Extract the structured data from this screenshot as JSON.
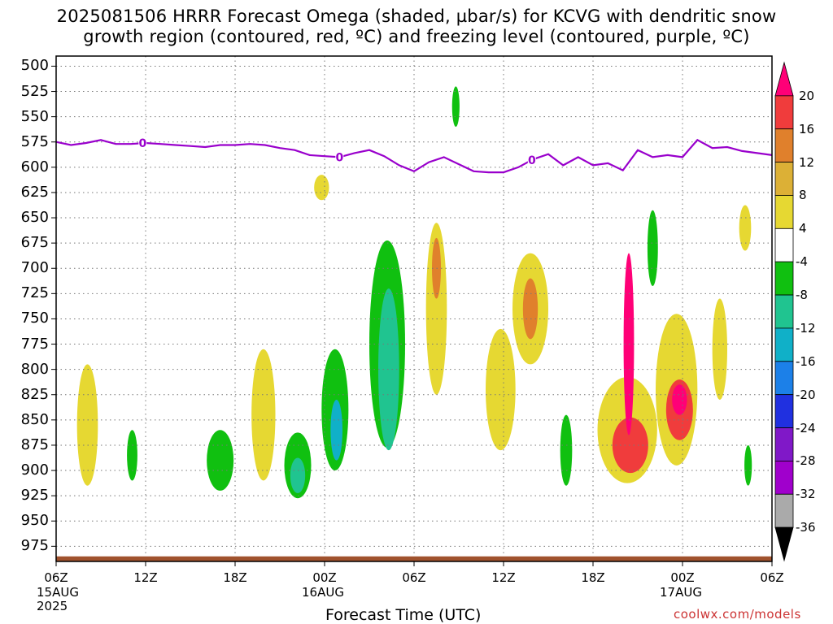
{
  "title_line1": "2025081506 HRRR Forecast Omega (shaded, µbar/s) for KCVG with dendritic snow",
  "title_line2": "growth region (contoured, red, ºC) and freezing level (contoured, purple, ºC)",
  "x_axis_title": "Forecast Time (UTC)",
  "credit": "coolwx.com/models",
  "chart_data": {
    "type": "heatmap",
    "title": "2025081506 HRRR Forecast Omega (shaded, µbar/s) for KCVG with dendritic snow growth region (contoured, red, ºC) and freezing level (contoured, purple, ºC)",
    "xlabel": "Forecast Time (UTC)",
    "ylabel": "",
    "x_unit": "hours since 2025-08-15 06Z",
    "xlim": [
      0,
      48
    ],
    "ylim": [
      990,
      490
    ],
    "y_ticks": [
      500,
      525,
      550,
      575,
      600,
      625,
      650,
      675,
      700,
      725,
      750,
      775,
      800,
      825,
      850,
      875,
      900,
      925,
      950,
      975
    ],
    "x_ticks": [
      {
        "x": 0,
        "label": "06Z",
        "date": "15AUG",
        "year": "2025"
      },
      {
        "x": 6,
        "label": "12Z"
      },
      {
        "x": 12,
        "label": "18Z"
      },
      {
        "x": 18,
        "label": "00Z",
        "date": "16AUG"
      },
      {
        "x": 24,
        "label": "06Z"
      },
      {
        "x": 30,
        "label": "12Z"
      },
      {
        "x": 36,
        "label": "18Z"
      },
      {
        "x": 42,
        "label": "00Z",
        "date": "17AUG"
      },
      {
        "x": 48,
        "label": "06Z"
      }
    ],
    "grid": true,
    "colorbar": {
      "labels": [
        "20",
        "16",
        "12",
        "8",
        "4",
        "-4",
        "-8",
        "-12",
        "-16",
        "-20",
        "-24",
        "-28",
        "-32",
        "-36"
      ],
      "colors": [
        "#ff0077",
        "#f03c3c",
        "#e0802c",
        "#dcb036",
        "#e6d832",
        "#ffffff",
        "#10c010",
        "#20c490",
        "#10b0c8",
        "#1c80e8",
        "#2030e0",
        "#8018c8",
        "#a000cc",
        "#aaaaaa",
        "#000000"
      ]
    },
    "freezing_level": {
      "color": "#9900cc",
      "label": "0",
      "points": [
        [
          0,
          575
        ],
        [
          1,
          578
        ],
        [
          2,
          576
        ],
        [
          3,
          573
        ],
        [
          4,
          577
        ],
        [
          5,
          577
        ],
        [
          6,
          576
        ],
        [
          7,
          577
        ],
        [
          8,
          578
        ],
        [
          9,
          579
        ],
        [
          10,
          580
        ],
        [
          11,
          578
        ],
        [
          12,
          578
        ],
        [
          13,
          577
        ],
        [
          14,
          578
        ],
        [
          15,
          581
        ],
        [
          16,
          583
        ],
        [
          17,
          588
        ],
        [
          18,
          589
        ],
        [
          19,
          590
        ],
        [
          20,
          586
        ],
        [
          21,
          583
        ],
        [
          22,
          589
        ],
        [
          23,
          598
        ],
        [
          24,
          604
        ],
        [
          25,
          595
        ],
        [
          26,
          590
        ],
        [
          27,
          597
        ],
        [
          28,
          604
        ],
        [
          29,
          605
        ],
        [
          30,
          605
        ],
        [
          31,
          600
        ],
        [
          32,
          592
        ],
        [
          33,
          587
        ],
        [
          34,
          598
        ],
        [
          35,
          590
        ],
        [
          36,
          598
        ],
        [
          37,
          596
        ],
        [
          38,
          603
        ],
        [
          39,
          583
        ],
        [
          40,
          590
        ],
        [
          41,
          588
        ],
        [
          42,
          590
        ],
        [
          43,
          573
        ],
        [
          44,
          581
        ],
        [
          45,
          580
        ],
        [
          46,
          584
        ],
        [
          47,
          586
        ],
        [
          48,
          588
        ]
      ]
    },
    "omega_features": [
      {
        "color": "#e6d832",
        "x": 2.1,
        "p": 855,
        "w": 0.7,
        "h": 120
      },
      {
        "color": "#10c010",
        "x": 5.1,
        "p": 885,
        "w": 0.35,
        "h": 50
      },
      {
        "color": "#e6d832",
        "x": 13.9,
        "p": 845,
        "w": 0.8,
        "h": 130
      },
      {
        "color": "#10c010",
        "x": 11.0,
        "p": 890,
        "w": 0.9,
        "h": 60
      },
      {
        "color": "#10c010",
        "x": 16.2,
        "p": 895,
        "w": 0.9,
        "h": 65
      },
      {
        "color": "#20c490",
        "x": 16.2,
        "p": 905,
        "w": 0.5,
        "h": 35
      },
      {
        "color": "#e6d832",
        "x": 17.8,
        "p": 620,
        "w": 0.5,
        "h": 25
      },
      {
        "color": "#10c010",
        "x": 18.7,
        "p": 840,
        "w": 0.9,
        "h": 120
      },
      {
        "color": "#10b0c8",
        "x": 18.8,
        "p": 860,
        "w": 0.4,
        "h": 60
      },
      {
        "color": "#10c010",
        "x": 22.2,
        "p": 775,
        "w": 1.2,
        "h": 205
      },
      {
        "color": "#20c490",
        "x": 22.3,
        "p": 800,
        "w": 0.7,
        "h": 160
      },
      {
        "color": "#e6d832",
        "x": 25.5,
        "p": 740,
        "w": 0.7,
        "h": 170
      },
      {
        "color": "#e0802c",
        "x": 25.5,
        "p": 700,
        "w": 0.3,
        "h": 60
      },
      {
        "color": "#10c010",
        "x": 26.8,
        "p": 540,
        "w": 0.25,
        "h": 40
      },
      {
        "color": "#e6d832",
        "x": 29.8,
        "p": 820,
        "w": 1.0,
        "h": 120
      },
      {
        "color": "#e6d832",
        "x": 31.8,
        "p": 740,
        "w": 1.2,
        "h": 110
      },
      {
        "color": "#e0802c",
        "x": 31.8,
        "p": 740,
        "w": 0.5,
        "h": 60
      },
      {
        "color": "#10c010",
        "x": 34.2,
        "p": 880,
        "w": 0.4,
        "h": 70
      },
      {
        "color": "#e6d832",
        "x": 38.3,
        "p": 860,
        "w": 2.0,
        "h": 105
      },
      {
        "color": "#f03c3c",
        "x": 38.5,
        "p": 875,
        "w": 1.2,
        "h": 55
      },
      {
        "color": "#ff0077",
        "x": 38.4,
        "p": 775,
        "w": 0.35,
        "h": 180
      },
      {
        "color": "#10c010",
        "x": 40.0,
        "p": 680,
        "w": 0.35,
        "h": 75
      },
      {
        "color": "#e6d832",
        "x": 41.6,
        "p": 820,
        "w": 1.4,
        "h": 150
      },
      {
        "color": "#f03c3c",
        "x": 41.8,
        "p": 840,
        "w": 0.9,
        "h": 60
      },
      {
        "color": "#ff0077",
        "x": 41.8,
        "p": 830,
        "w": 0.5,
        "h": 30
      },
      {
        "color": "#e6d832",
        "x": 44.5,
        "p": 780,
        "w": 0.5,
        "h": 100
      },
      {
        "color": "#e6d832",
        "x": 46.2,
        "p": 660,
        "w": 0.4,
        "h": 45
      },
      {
        "color": "#10c010",
        "x": 46.4,
        "p": 895,
        "w": 0.25,
        "h": 40
      }
    ],
    "terrain": {
      "color": "#a0522d",
      "surface_pressure": 985
    }
  }
}
